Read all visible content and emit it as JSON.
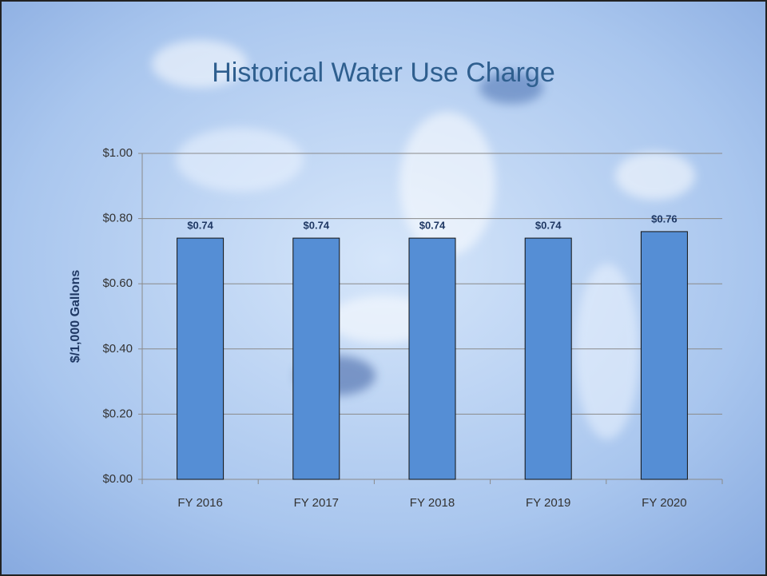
{
  "chart_data": {
    "type": "bar",
    "title": "Historical Water Use Charge",
    "y_label": "$/1,000 Gallons",
    "categories": [
      "FY 2016",
      "FY 2017",
      "FY 2018",
      "FY 2019",
      "FY 2020"
    ],
    "values": [
      0.74,
      0.74,
      0.74,
      0.74,
      0.76
    ],
    "value_labels": [
      "$0.74",
      "$0.74",
      "$0.74",
      "$0.74",
      "$0.76"
    ],
    "color": "#558ed5",
    "ylim": [
      0,
      1
    ],
    "yticks": [
      {
        "value": 0,
        "label": "$0.00"
      },
      {
        "value": 0.2,
        "label": "$0.20"
      },
      {
        "value": 0.4,
        "label": "$0.40"
      },
      {
        "value": 0.6,
        "label": "$0.60"
      },
      {
        "value": 0.8,
        "label": "$0.80"
      },
      {
        "value": 1,
        "label": "$1.00"
      }
    ],
    "grid": true
  }
}
